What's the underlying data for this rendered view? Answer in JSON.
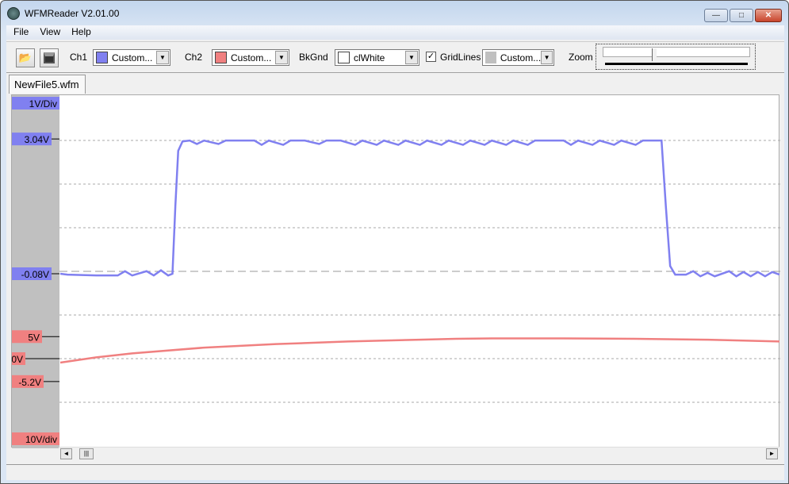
{
  "window": {
    "title": "WFMReader V2.01.00",
    "minimize": "—",
    "maximize": "□",
    "close": "✕"
  },
  "menu": [
    "File",
    "View",
    "Help"
  ],
  "toolbar": {
    "open_icon": "folder-open-icon",
    "save_icon": "floppy-save-icon",
    "ch1_label": "Ch1",
    "ch1_value": "Custom...",
    "ch1_color": "#8080f0",
    "ch2_label": "Ch2",
    "ch2_value": "Custom...",
    "ch2_color": "#f08080",
    "bkgnd_label": "BkGnd",
    "bkgnd_value": "clWhite",
    "bkgnd_color": "#ffffff",
    "gridlines_label": "GridLines",
    "gridlines_checked": true,
    "grid_value": "Custom...",
    "grid_color": "#c0c0c0",
    "zoom_label": "Zoom",
    "zoom_level": 0.33
  },
  "tab": "NewFile5.wfm",
  "scope": {
    "ch1_scale": "1V/Div",
    "ch1_high_label": "3.04V",
    "ch1_low_label": "-0.08V",
    "ch2_scale": "10V/div",
    "ch2_labels": [
      "5V",
      "0V",
      "-5.2V"
    ],
    "ch1_points": [
      [
        0,
        -0.08
      ],
      [
        1,
        -0.1
      ],
      [
        5,
        -0.12
      ],
      [
        8,
        -0.12
      ],
      [
        9,
        -0.02
      ],
      [
        10,
        -0.12
      ],
      [
        12,
        -0.02
      ],
      [
        13,
        -0.12
      ],
      [
        14,
        0
      ],
      [
        15,
        -0.12
      ],
      [
        15.6,
        -0.08
      ],
      [
        16,
        1.5
      ],
      [
        16.4,
        2.8
      ],
      [
        17,
        3.02
      ],
      [
        18,
        3.04
      ],
      [
        19,
        2.96
      ],
      [
        20,
        3.04
      ],
      [
        22,
        2.96
      ],
      [
        23,
        3.04
      ],
      [
        25,
        3.04
      ],
      [
        27,
        3.04
      ],
      [
        28,
        2.94
      ],
      [
        29,
        3.04
      ],
      [
        31,
        2.94
      ],
      [
        32,
        3.04
      ],
      [
        34,
        3.04
      ],
      [
        36,
        2.96
      ],
      [
        37,
        3.04
      ],
      [
        39,
        3.04
      ],
      [
        41,
        2.94
      ],
      [
        42,
        3.04
      ],
      [
        44,
        2.94
      ],
      [
        45,
        3.04
      ],
      [
        47,
        2.94
      ],
      [
        48,
        3.04
      ],
      [
        50,
        2.94
      ],
      [
        51,
        3.04
      ],
      [
        53,
        2.94
      ],
      [
        54,
        3.04
      ],
      [
        56,
        2.94
      ],
      [
        57,
        3.04
      ],
      [
        59,
        2.94
      ],
      [
        60,
        3.04
      ],
      [
        62,
        2.94
      ],
      [
        63,
        3.04
      ],
      [
        65,
        2.94
      ],
      [
        66,
        3.04
      ],
      [
        68,
        3.04
      ],
      [
        70,
        3.04
      ],
      [
        71,
        2.94
      ],
      [
        72,
        3.04
      ],
      [
        74,
        2.94
      ],
      [
        75,
        3.04
      ],
      [
        77,
        2.94
      ],
      [
        78,
        3.04
      ],
      [
        80,
        2.94
      ],
      [
        81,
        3.04
      ],
      [
        83,
        3.04
      ],
      [
        83.6,
        3.04
      ],
      [
        84.2,
        1.5
      ],
      [
        84.8,
        0.1
      ],
      [
        85.5,
        -0.1
      ],
      [
        87,
        -0.1
      ],
      [
        88,
        -0.02
      ],
      [
        89,
        -0.14
      ],
      [
        90,
        -0.06
      ],
      [
        91,
        -0.14
      ],
      [
        93,
        -0.02
      ],
      [
        94,
        -0.14
      ],
      [
        95,
        -0.04
      ],
      [
        96,
        -0.14
      ],
      [
        97,
        -0.04
      ],
      [
        98,
        -0.14
      ],
      [
        99,
        -0.04
      ],
      [
        100,
        -0.1
      ]
    ],
    "ch2_points": [
      [
        0,
        -0.9
      ],
      [
        5,
        0.3
      ],
      [
        10,
        1.2
      ],
      [
        20,
        2.5
      ],
      [
        30,
        3.3
      ],
      [
        40,
        3.9
      ],
      [
        50,
        4.3
      ],
      [
        55,
        4.5
      ],
      [
        60,
        4.6
      ],
      [
        70,
        4.6
      ],
      [
        80,
        4.5
      ],
      [
        90,
        4.3
      ],
      [
        100,
        3.9
      ]
    ]
  },
  "scrollbar": {
    "left": "◄",
    "right": "►",
    "thumb": "|||"
  }
}
